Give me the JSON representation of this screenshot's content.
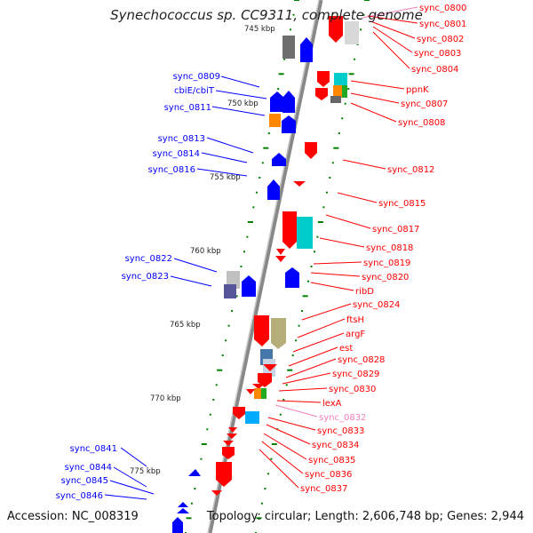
{
  "title": "Synechococcus sp. CC9311, complete genome",
  "accession_label": "Accession: NC_008319",
  "summary_label": "Topology: circular; Length: 2,606,748 bp; Genes: 2,944",
  "colors": {
    "forward_gene": "#ff0000",
    "reverse_gene": "#0000ff",
    "backbone": "#808080",
    "tick": "#008000",
    "faded_label": "#f080c0"
  },
  "ticks": [
    {
      "label": "745 kbp"
    },
    {
      "label": "750 kbp"
    },
    {
      "label": "755 kbp"
    },
    {
      "label": "760 kbp"
    },
    {
      "label": "765 kbp"
    },
    {
      "label": "770 kbp"
    },
    {
      "label": "775 kbp"
    }
  ],
  "left_labels": [
    "sync_0809",
    "cbiE/cbiT",
    "sync_0811",
    "sync_0813",
    "sync_0814",
    "sync_0816",
    "sync_0822",
    "sync_0823",
    "sync_0841",
    "sync_0844",
    "sync_0845",
    "sync_0846"
  ],
  "right_labels": [
    "sync_0800",
    "sync_0801",
    "sync_0802",
    "sync_0803",
    "sync_0804",
    "ppnK",
    "sync_0807",
    "sync_0808",
    "sync_0812",
    "sync_0815",
    "sync_0817",
    "sync_0818",
    "sync_0819",
    "sync_0820",
    "ribD",
    "sync_0824",
    "ftsH",
    "argF",
    "est",
    "sync_0828",
    "sync_0829",
    "sync_0830",
    "lexA",
    "sync_0832",
    "sync_0833",
    "sync_0834",
    "sync_0835",
    "sync_0836",
    "sync_0837"
  ]
}
